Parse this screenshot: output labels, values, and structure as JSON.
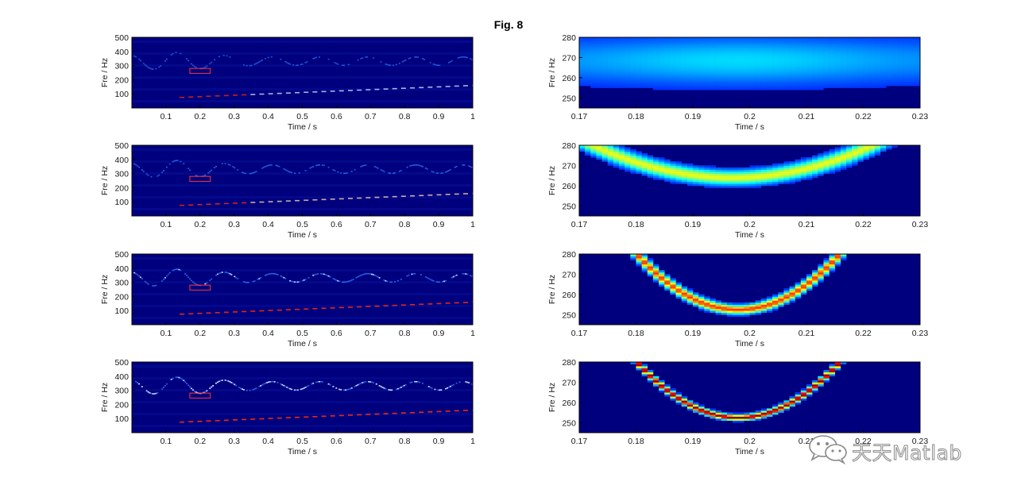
{
  "figure": {
    "title": "Fig. 8",
    "colors": {
      "background": "#00007f",
      "curve": "#2f7cff",
      "highlight": "#ff2a00",
      "box": "#ff3333"
    },
    "watermark": {
      "text": "天天Matlab",
      "icon": "wechat-logo-icon"
    }
  },
  "chart_data": [
    {
      "type": "heatmap",
      "panel": "left-1",
      "title": "",
      "xlabel": "Time / s",
      "ylabel": "Fre / Hz",
      "xlim": [
        0,
        1
      ],
      "ylim": [
        0,
        500
      ],
      "xticks": [
        "0.1",
        "0.2",
        "0.3",
        "0.4",
        "0.5",
        "0.6",
        "0.7",
        "0.8",
        "0.9",
        "1"
      ],
      "yticks": [
        "100",
        "200",
        "300",
        "400",
        "500"
      ],
      "ridges": [
        {
          "description": "oscillating tone",
          "center_hz": 330,
          "amplitude_hz": 70,
          "period_s": 0.14,
          "intensity": 0.35
        },
        {
          "description": "rising tone",
          "start_hz": 75,
          "end_hz": 160,
          "intensity": 0.4
        }
      ],
      "box": {
        "x": [
          0.17,
          0.23
        ],
        "y": [
          245,
          280
        ]
      }
    },
    {
      "type": "heatmap",
      "panel": "left-2",
      "title": "",
      "xlabel": "Time / s",
      "ylabel": "Fre / Hz",
      "xlim": [
        0,
        1
      ],
      "ylim": [
        0,
        500
      ],
      "xticks": [
        "0.1",
        "0.2",
        "0.3",
        "0.4",
        "0.5",
        "0.6",
        "0.7",
        "0.8",
        "0.9",
        "1"
      ],
      "yticks": [
        "100",
        "200",
        "300",
        "400",
        "500"
      ],
      "ridges": [
        {
          "description": "oscillating tone",
          "center_hz": 330,
          "amplitude_hz": 70,
          "period_s": 0.14,
          "intensity": 0.55
        },
        {
          "description": "rising tone",
          "start_hz": 75,
          "end_hz": 160,
          "intensity": 0.55
        }
      ],
      "box": {
        "x": [
          0.17,
          0.23
        ],
        "y": [
          245,
          280
        ]
      }
    },
    {
      "type": "heatmap",
      "panel": "left-3",
      "title": "",
      "xlabel": "Time / s",
      "ylabel": "Fre / Hz",
      "xlim": [
        0,
        1
      ],
      "ylim": [
        0,
        500
      ],
      "xticks": [
        "0.1",
        "0.2",
        "0.3",
        "0.4",
        "0.5",
        "0.6",
        "0.7",
        "0.8",
        "0.9",
        "1"
      ],
      "yticks": [
        "100",
        "200",
        "300",
        "400",
        "500"
      ],
      "ridges": [
        {
          "description": "oscillating tone",
          "center_hz": 330,
          "amplitude_hz": 70,
          "period_s": 0.14,
          "intensity": 0.75
        },
        {
          "description": "rising tone",
          "start_hz": 75,
          "end_hz": 160,
          "intensity": 0.75
        }
      ],
      "box": {
        "x": [
          0.17,
          0.23
        ],
        "y": [
          245,
          280
        ]
      }
    },
    {
      "type": "heatmap",
      "panel": "left-4",
      "title": "",
      "xlabel": "Time / s",
      "ylabel": "Fre / Hz",
      "xlim": [
        0,
        1
      ],
      "ylim": [
        0,
        500
      ],
      "xticks": [
        "0.1",
        "0.2",
        "0.3",
        "0.4",
        "0.5",
        "0.6",
        "0.7",
        "0.8",
        "0.9",
        "1"
      ],
      "yticks": [
        "100",
        "200",
        "300",
        "400",
        "500"
      ],
      "ridges": [
        {
          "description": "oscillating tone",
          "center_hz": 330,
          "amplitude_hz": 70,
          "period_s": 0.14,
          "intensity": 0.9
        },
        {
          "description": "rising tone",
          "start_hz": 75,
          "end_hz": 160,
          "intensity": 0.9
        }
      ],
      "box": {
        "x": [
          0.17,
          0.23
        ],
        "y": [
          245,
          280
        ]
      }
    },
    {
      "type": "heatmap",
      "panel": "right-1",
      "title": "",
      "xlabel": "Time / s",
      "ylabel": "Fre / Hz",
      "xlim": [
        0.17,
        0.23
      ],
      "ylim": [
        245,
        280
      ],
      "xticks": [
        "0.17",
        "0.18",
        "0.19",
        "0.2",
        "0.21",
        "0.22",
        "0.23"
      ],
      "yticks": [
        "250",
        "260",
        "270",
        "280"
      ],
      "curve": {
        "vertex_t": 0.198,
        "vertex_hz": 268.5,
        "curvature": 0,
        "width_hz": 8,
        "intensity": 0.25
      }
    },
    {
      "type": "heatmap",
      "panel": "right-2",
      "title": "",
      "xlabel": "Time / s",
      "ylabel": "Fre / Hz",
      "xlim": [
        0.17,
        0.23
      ],
      "ylim": [
        245,
        280
      ],
      "xticks": [
        "0.17",
        "0.18",
        "0.19",
        "0.2",
        "0.21",
        "0.22",
        "0.23"
      ],
      "yticks": [
        "250",
        "260",
        "270",
        "280"
      ],
      "curve": {
        "vertex_t": 0.197,
        "vertex_hz": 264,
        "curvature": 0.0265,
        "width_hz": 2.2,
        "intensity": 0.55
      }
    },
    {
      "type": "heatmap",
      "panel": "right-3",
      "title": "",
      "xlabel": "Time / s",
      "ylabel": "Fre / Hz",
      "xlim": [
        0.17,
        0.23
      ],
      "ylim": [
        245,
        280
      ],
      "xticks": [
        "0.17",
        "0.18",
        "0.19",
        "0.2",
        "0.21",
        "0.22",
        "0.23"
      ],
      "yticks": [
        "250",
        "260",
        "270",
        "280"
      ],
      "curve": {
        "vertex_t": 0.198,
        "vertex_hz": 252.5,
        "curvature": 0.0861,
        "width_hz": 1.3,
        "intensity": 0.8
      }
    },
    {
      "type": "heatmap",
      "panel": "right-4",
      "title": "",
      "xlabel": "Time / s",
      "ylabel": "Fre / Hz",
      "xlim": [
        0.17,
        0.23
      ],
      "ylim": [
        245,
        280
      ],
      "xticks": [
        "0.17",
        "0.18",
        "0.19",
        "0.2",
        "0.21",
        "0.22",
        "0.23"
      ],
      "yticks": [
        "250",
        "260",
        "270",
        "280"
      ],
      "curve": {
        "vertex_t": 0.198,
        "vertex_hz": 252.5,
        "curvature": 0.0861,
        "width_hz": 0.8,
        "intensity": 1.0
      }
    }
  ]
}
